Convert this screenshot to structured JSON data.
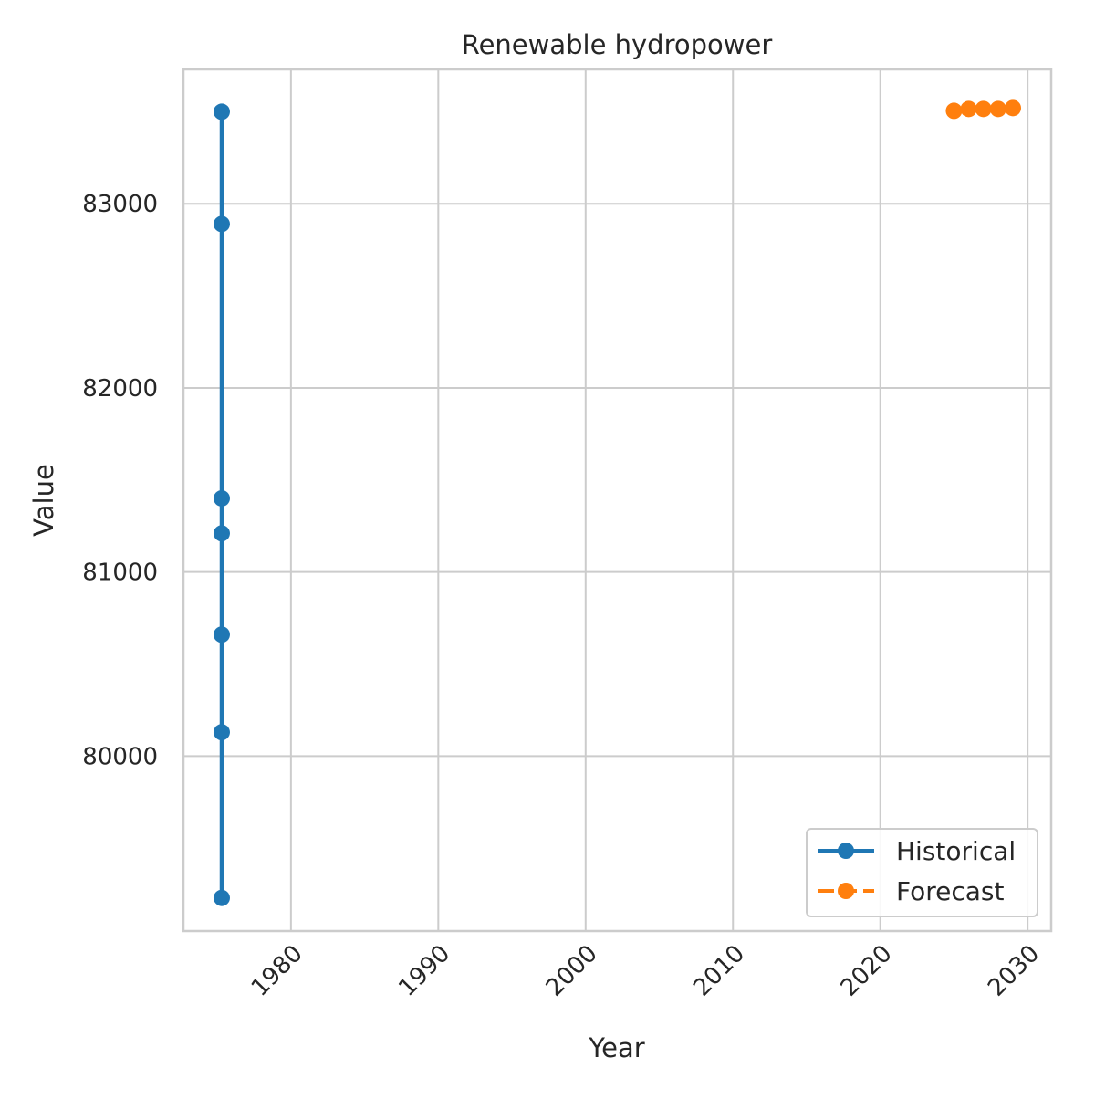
{
  "chart_data": {
    "type": "line",
    "title": "Renewable hydropower",
    "xlabel": "Year",
    "ylabel": "Value",
    "xlim": [
      1972.7,
      2031.6
    ],
    "ylim": [
      79050,
      83730
    ],
    "x_ticks": [
      1980,
      1990,
      2000,
      2010,
      2020,
      2030
    ],
    "y_ticks": [
      80000,
      81000,
      82000,
      83000
    ],
    "grid": true,
    "legend_position": "lower-right",
    "series": [
      {
        "name": "Historical",
        "color": "#1f77b4",
        "line_style": "solid",
        "marker": "circle",
        "x": [
          1975.3,
          1975.3,
          1975.3,
          1975.3,
          1975.3,
          1975.3,
          1975.3
        ],
        "y": [
          79230,
          80130,
          80660,
          81210,
          81400,
          82890,
          83500
        ]
      },
      {
        "name": "Forecast",
        "color": "#ff7f0e",
        "line_style": "dashed",
        "marker": "circle",
        "x": [
          2025,
          2026,
          2027,
          2028,
          2029
        ],
        "y": [
          83505,
          83515,
          83515,
          83515,
          83520
        ]
      }
    ]
  }
}
